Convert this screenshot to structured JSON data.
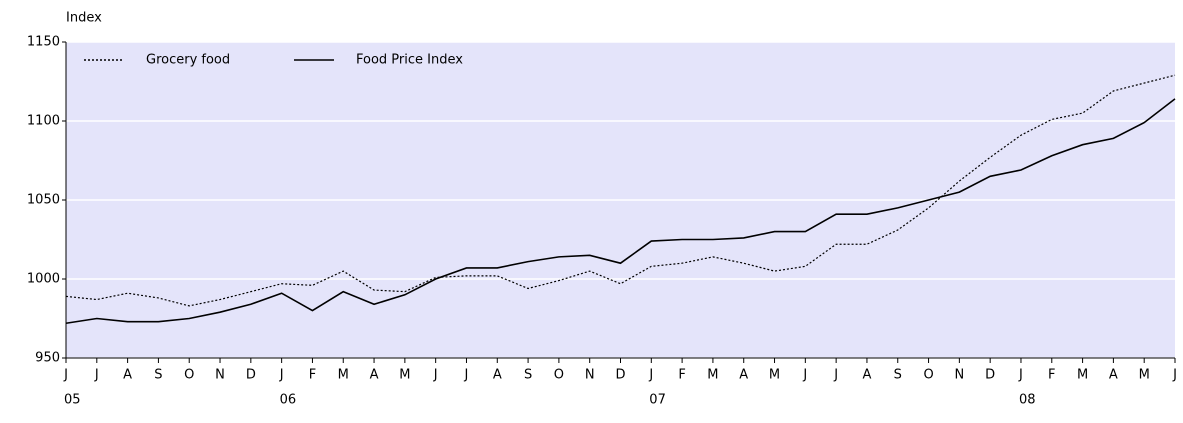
{
  "chart_data": {
    "type": "line",
    "y_label": "Index",
    "categories": [
      "J",
      "J",
      "A",
      "S",
      "O",
      "N",
      "D",
      "J",
      "F",
      "M",
      "A",
      "M",
      "J",
      "J",
      "A",
      "S",
      "O",
      "N",
      "D",
      "J",
      "F",
      "M",
      "A",
      "M",
      "J",
      "J",
      "A",
      "S",
      "O",
      "N",
      "D",
      "J",
      "F",
      "M",
      "A",
      "M",
      "J"
    ],
    "year_row": [
      "05",
      null,
      null,
      null,
      null,
      null,
      null,
      "06",
      null,
      null,
      null,
      null,
      null,
      null,
      null,
      null,
      null,
      null,
      null,
      "07",
      null,
      null,
      null,
      null,
      null,
      null,
      null,
      null,
      null,
      null,
      null,
      "08",
      null,
      null,
      null,
      null,
      null
    ],
    "series": [
      {
        "name": "Grocery food",
        "color": "#000000",
        "line_style": "dotted",
        "values": [
          989,
          987,
          991,
          988,
          983,
          987,
          992,
          997,
          996,
          1005,
          993,
          992,
          1001,
          1002,
          1002,
          994,
          999,
          1005,
          997,
          1008,
          1010,
          1014,
          1010,
          1005,
          1008,
          1022,
          1022,
          1031,
          1045,
          1062,
          1077,
          1091,
          1101,
          1105,
          1119,
          1124,
          1129
        ]
      },
      {
        "name": "Food Price Index",
        "color": "#000000",
        "line_style": "solid",
        "values": [
          972,
          975,
          973,
          973,
          975,
          979,
          984,
          991,
          980,
          992,
          984,
          990,
          1000,
          1007,
          1007,
          1011,
          1014,
          1015,
          1010,
          1024,
          1025,
          1025,
          1026,
          1030,
          1030,
          1041,
          1041,
          1045,
          1050,
          1055,
          1065,
          1069,
          1078,
          1085,
          1089,
          1099,
          1114
        ]
      }
    ],
    "ylim": [
      950,
      1150
    ],
    "yticks": [
      950,
      1000,
      1050,
      1100,
      1150
    ],
    "grid": true,
    "plot_background": "#e4e4fa",
    "legend": "top-left"
  }
}
